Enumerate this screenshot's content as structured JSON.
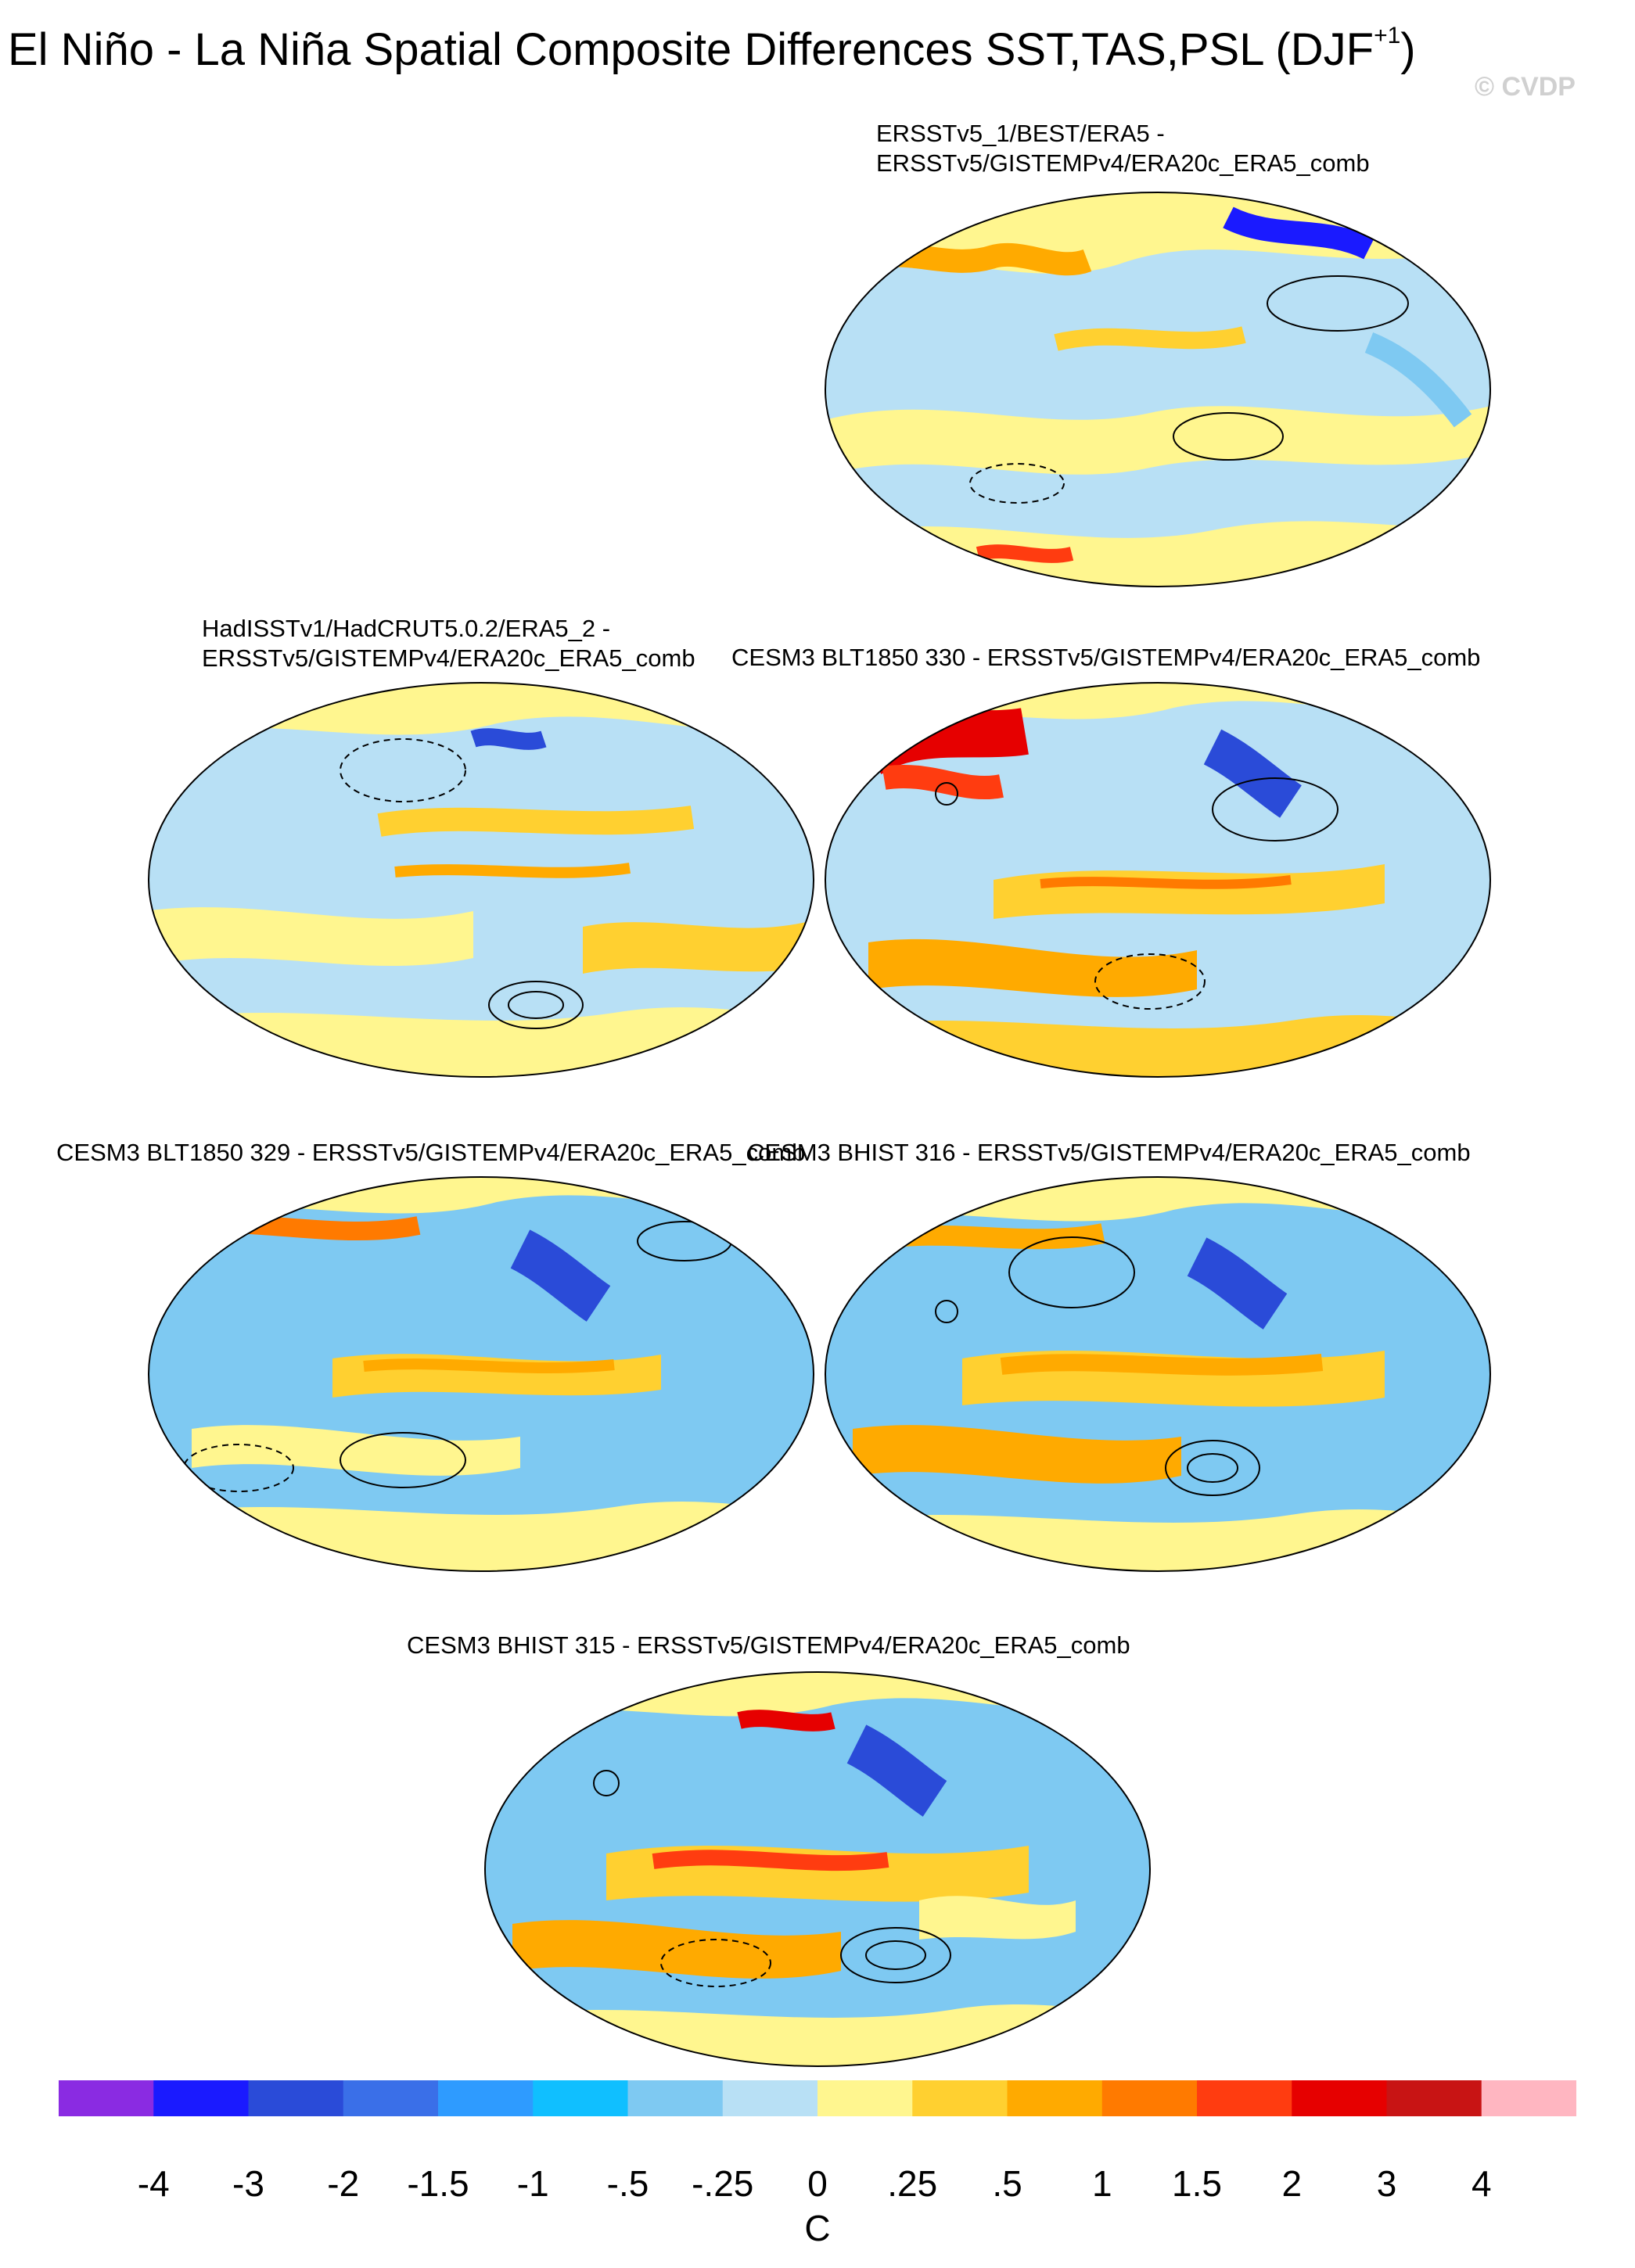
{
  "title": {
    "main": "El Niño - La Niña Spatial Composite Differences SST,TAS,PSL (DJF",
    "sup": "+1",
    "close": ")"
  },
  "copyright": "© CVDP",
  "panels": [
    {
      "line1": "ERSSTv5_1/BEST/ERA5 -",
      "line2": "ERSSTv5/GISTEMPv4/ERA20c_ERA5_comb"
    },
    {
      "line1": "HadISSTv1/HadCRUT5.0.2/ERA5_2 -",
      "line2": "ERSSTv5/GISTEMPv4/ERA20c_ERA5_comb"
    },
    {
      "line1": "CESM3 BLT1850 330 - ERSSTv5/GISTEMPv4/ERA20c_ERA5_comb"
    },
    {
      "line1": "CESM3 BLT1850 329 - ERSSTv5/GISTEMPv4/ERA20c_ERA5_comb"
    },
    {
      "line1": "CESM3 BHIST 316 - ERSSTv5/GISTEMPv4/ERA20c_ERA5_comb"
    },
    {
      "line1": "CESM3 BHIST 315 - ERSSTv5/GISTEMPv4/ERA20c_ERA5_comb"
    }
  ],
  "colorbar": {
    "colors": [
      "#8a2be2",
      "#1a1aff",
      "#2a4bd8",
      "#3a6fe8",
      "#2e9bff",
      "#10bfff",
      "#7ec9f2",
      "#b8e0f5",
      "#fff68f",
      "#ffd030",
      "#ffaa00",
      "#ff7a00",
      "#ff3c10",
      "#e60000",
      "#c81414",
      "#ffb6c1"
    ],
    "labels": [
      "-4",
      "-3",
      "-2",
      "-1.5",
      "-1",
      "-.5",
      "-.25",
      "0",
      ".25",
      ".5",
      "1",
      "1.5",
      "2",
      "3",
      "4"
    ],
    "unit": "C"
  }
}
